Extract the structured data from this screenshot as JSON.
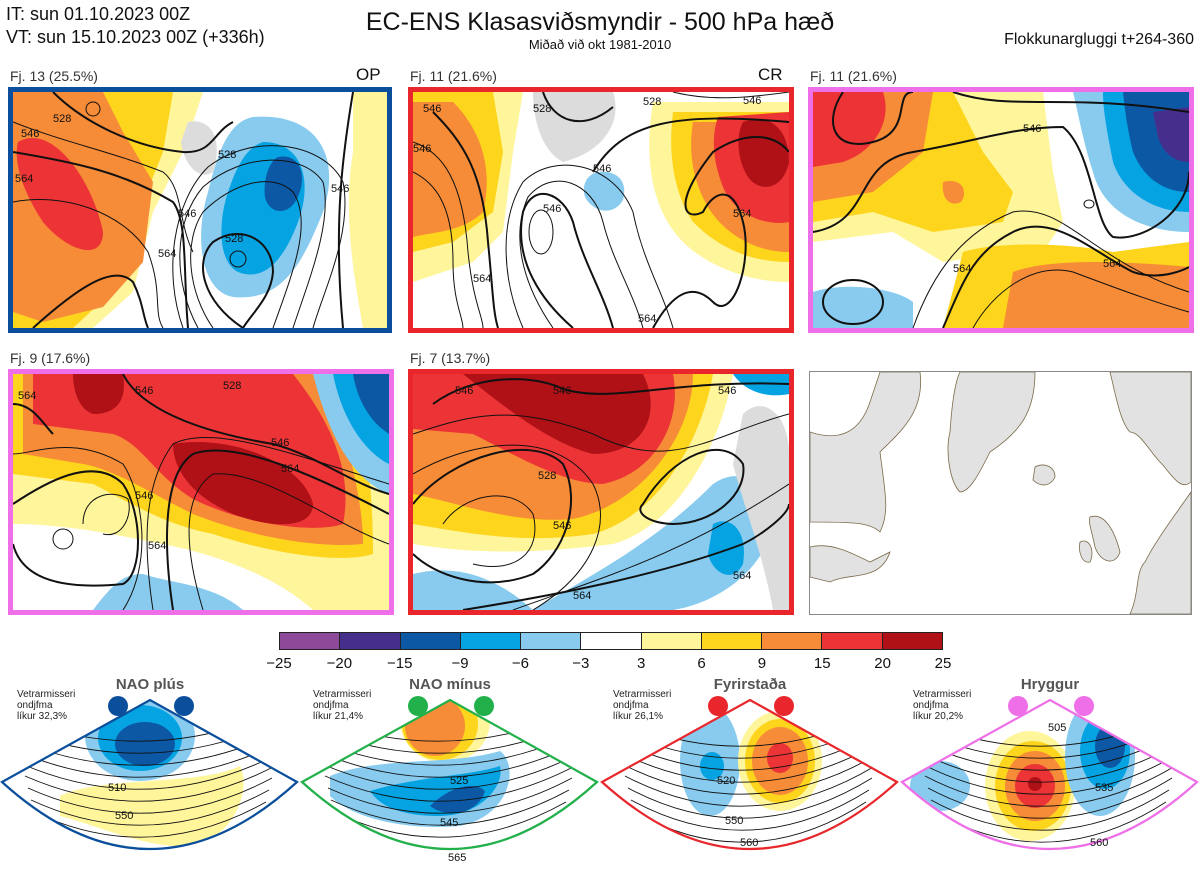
{
  "header": {
    "initial_time": "IT: sun 01.10.2023 00Z",
    "valid_time": "VT: sun 15.10.2023 00Z  (+336h)",
    "title": "EC-ENS Klasasviðsmyndir - 500 hPa hæð",
    "subtitle": "Miðað við okt 1981-2010",
    "cluster_window": "Flokkunargluggi t+264-360"
  },
  "panels": [
    {
      "label": "Fj. 13 (25.5%)",
      "tag": "OP",
      "border_color": "#0b4f9c",
      "contour_labels": [
        "528",
        "546",
        "564",
        "528",
        "546",
        "528",
        "564",
        "546"
      ]
    },
    {
      "label": "Fj. 11 (21.6%)",
      "tag": "CR",
      "border_color": "#e8262b",
      "contour_labels": [
        "546",
        "528",
        "546",
        "564",
        "546",
        "528",
        "546",
        "564",
        "546",
        "564"
      ]
    },
    {
      "label": "Fj. 11 (21.6%)",
      "tag": "",
      "border_color": "#ee6fe8",
      "contour_labels": [
        "546",
        "564",
        "564"
      ]
    },
    {
      "label": "Fj. 9 (17.6%)",
      "tag": "",
      "border_color": "#ee6fe8",
      "contour_labels": [
        "564",
        "546",
        "528",
        "546",
        "564",
        "546",
        "564"
      ]
    },
    {
      "label": "Fj. 7 (13.7%)",
      "tag": "",
      "border_color": "#e8262b",
      "contour_labels": [
        "546",
        "546",
        "528",
        "546",
        "546",
        "564",
        "564"
      ]
    }
  ],
  "colorbar": {
    "ticks": [
      "−25",
      "−20",
      "−15",
      "−9",
      "−6",
      "−3",
      "3",
      "6",
      "9",
      "15",
      "20",
      "25"
    ],
    "colors": [
      "#8d4a98",
      "#462e8d",
      "#0d58a4",
      "#06a3e2",
      "#88cbef",
      "#ffffff",
      "#fff59b",
      "#fed51d",
      "#f68b38",
      "#ec3436",
      "#b01117"
    ]
  },
  "regimes": [
    {
      "name": "NAO plús",
      "line1": "Vetrarmisseri",
      "line2": "ondjfma",
      "line3": "líkur 32,3%",
      "color": "#0b4f9c",
      "labels": [
        "510",
        "550"
      ]
    },
    {
      "name": "NAO mínus",
      "line1": "Vetrarmisseri",
      "line2": "ondjfma",
      "line3": "líkur 21,4%",
      "color": "#22b04b",
      "labels": [
        "525",
        "545",
        "565"
      ]
    },
    {
      "name": "Fyrirstaða",
      "line1": "Vetrarmisseri",
      "line2": "ondjfma",
      "line3": "líkur 26,1%",
      "color": "#e8262b",
      "labels": [
        "520",
        "550",
        "560"
      ]
    },
    {
      "name": "Hryggur",
      "line1": "Vetrarmisseri",
      "line2": "ondjfma",
      "line3": "líkur 20,2%",
      "color": "#ee6fe8",
      "labels": [
        "505",
        "535",
        "560"
      ]
    }
  ]
}
